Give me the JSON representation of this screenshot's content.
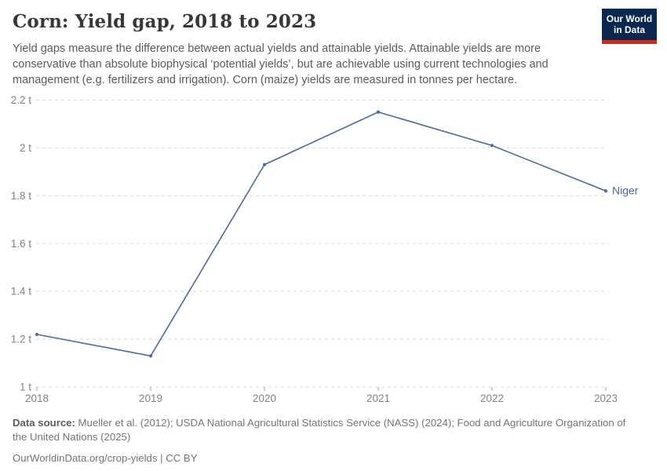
{
  "header": {
    "title": "Corn: Yield gap, 2018 to 2023",
    "subtitle": "Yield gaps measure the difference between actual yields and attainable yields. Attainable yields are more conservative than absolute biophysical ‘potential yields’, but are achievable using current technologies and management (e.g. fertilizers and irrigation). Corn (maize) yields are measured in tonnes per hectare.",
    "logo": {
      "line1": "Our World",
      "line2": "in Data",
      "bg_color": "#0a2750",
      "accent_color": "#d0291f"
    }
  },
  "chart_data": {
    "type": "line",
    "title": "Corn: Yield gap, 2018 to 2023",
    "x": [
      2018,
      2019,
      2020,
      2021,
      2022,
      2023
    ],
    "xtick_labels": [
      "2018",
      "2019",
      "2020",
      "2021",
      "2022",
      "2023"
    ],
    "series": [
      {
        "name": "Niger",
        "values": [
          1.22,
          1.13,
          1.93,
          2.15,
          2.01,
          1.82
        ],
        "color": "#4c6a9c"
      }
    ],
    "unit": "t",
    "ylabel": "",
    "xlabel": "",
    "ylim": [
      1.0,
      2.2
    ],
    "ytick_step": 0.2,
    "ytick_labels": [
      "1 t",
      "1.2 t",
      "1.4 t",
      "1.6 t",
      "1.8 t",
      "2 t",
      "2.2 t"
    ],
    "grid": "dashed-horizontal",
    "legend_position": "end-of-line",
    "end_label": "Niger",
    "colors": {
      "grid": "#dcdcdc",
      "tick_text": "#828282",
      "tick_mark": "#a3a3a3"
    }
  },
  "footer": {
    "source_label": "Data source:",
    "source_text": " Mueller et al. (2012); USDA National Agricultural Statistics Service (NASS) (2024); Food and Agriculture Organization of the United Nations (2025)",
    "permalink": "OurWorldinData.org/crop-yields | CC BY"
  }
}
